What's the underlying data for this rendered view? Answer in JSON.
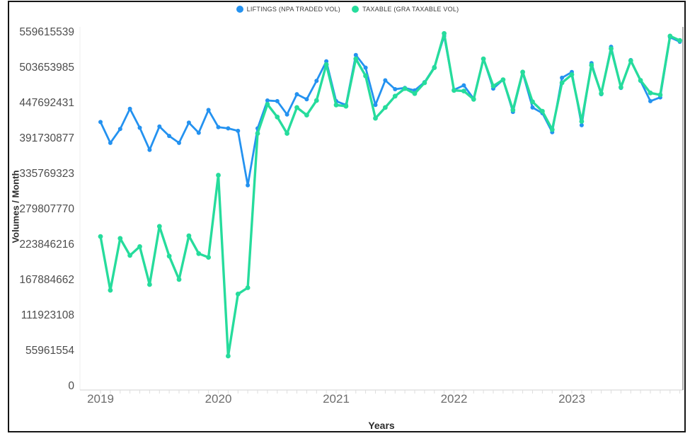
{
  "window": {
    "background": "#ffffff",
    "border_color": "#161616"
  },
  "legend": {
    "items": [
      {
        "label": "LIFTINGS (NPA TRADED VOL)",
        "color": "#2492f0"
      },
      {
        "label": "TAXABLE (GRA TAXABLE VOL)",
        "color": "#26dc9c"
      }
    ]
  },
  "chart_data": {
    "type": "line",
    "title": "",
    "xlabel": "Years",
    "ylabel": "Volumes / Month",
    "x_tick_labels": [
      "2019",
      "2020",
      "2021",
      "2022",
      "2023"
    ],
    "y_tick_values": [
      0,
      55961554,
      111923108,
      167884662,
      223846216,
      279807770,
      335769323,
      391730877,
      447692431,
      503653985,
      559615539
    ],
    "ylim": [
      0,
      559615539
    ],
    "x_start": "2019-01",
    "x_step_months": 1,
    "grid": false,
    "legend_position": "top-center",
    "series": [
      {
        "name": "LIFTINGS (NPA TRADED VOL)",
        "color": "#2492f0",
        "values": [
          417000000,
          384000000,
          406000000,
          438000000,
          408000000,
          373000000,
          410000000,
          395000000,
          384000000,
          416000000,
          400000000,
          436000000,
          409000000,
          407000000,
          403000000,
          317000000,
          407000000,
          451000000,
          450000000,
          429000000,
          461000000,
          453000000,
          482000000,
          513000000,
          450000000,
          444000000,
          523000000,
          503000000,
          444000000,
          483000000,
          469000000,
          471000000,
          467000000,
          480000000,
          504000000,
          553000000,
          468000000,
          475000000,
          454000000,
          517000000,
          470000000,
          484000000,
          433000000,
          495000000,
          440000000,
          431000000,
          401000000,
          487000000,
          496000000,
          412000000,
          510000000,
          461000000,
          536000000,
          471000000,
          515000000,
          482000000,
          450000000,
          456000000,
          551000000,
          544000000
        ]
      },
      {
        "name": "TAXABLE (GRA TAXABLE VOL)",
        "color": "#26dc9c",
        "values": [
          236000000,
          151000000,
          233000000,
          206000000,
          220000000,
          160000000,
          252000000,
          205000000,
          168000000,
          237000000,
          209000000,
          203000000,
          333000000,
          47000000,
          145000000,
          155000000,
          399000000,
          445000000,
          425000000,
          399000000,
          440000000,
          428000000,
          451000000,
          508000000,
          444000000,
          442000000,
          517000000,
          490000000,
          423000000,
          440000000,
          458000000,
          470000000,
          462000000,
          479000000,
          503000000,
          557000000,
          467000000,
          466000000,
          453000000,
          517000000,
          474000000,
          484000000,
          436000000,
          496000000,
          449000000,
          434000000,
          405000000,
          479000000,
          492000000,
          418000000,
          507000000,
          462000000,
          533000000,
          472000000,
          514000000,
          483000000,
          463000000,
          460000000,
          553000000,
          546000000
        ]
      }
    ]
  }
}
